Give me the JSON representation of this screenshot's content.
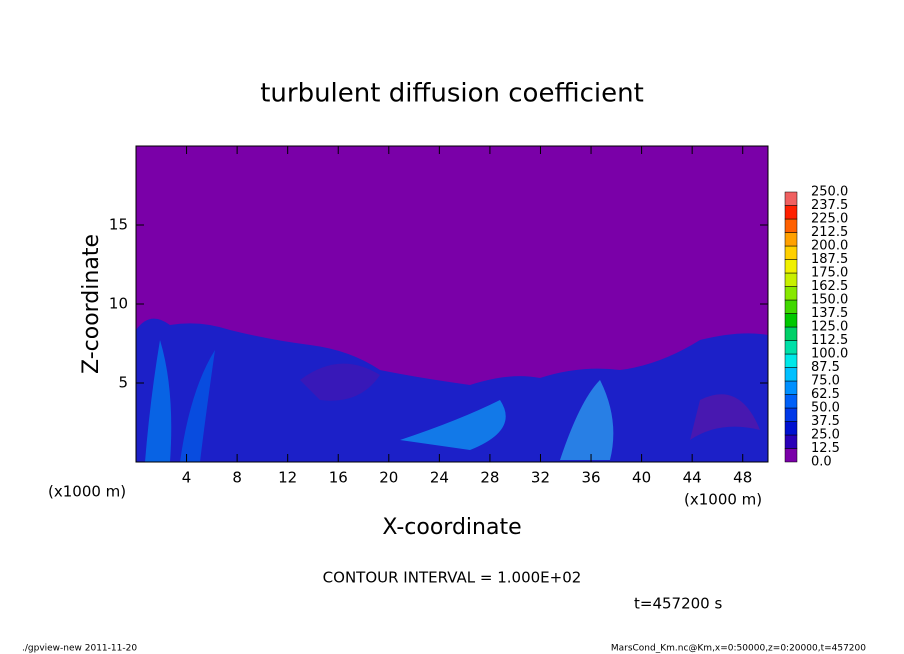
{
  "chart_data": {
    "type": "contour",
    "title": "turbulent diffusion coefficient",
    "xlabel": "X-coordinate",
    "ylabel": "Z-coordinate",
    "xunit": "(x1000 m)",
    "xlim": [
      0,
      50
    ],
    "xticks": [
      4,
      8,
      12,
      16,
      20,
      24,
      28,
      32,
      36,
      40,
      44,
      48
    ],
    "ylim": [
      0,
      20
    ],
    "yticks": [
      5,
      10,
      15
    ],
    "background_color": "#7a00a8",
    "colorbar": {
      "levels": [
        {
          "value": 0,
          "label": "0.0"
        },
        12.5,
        {
          "value": 25,
          "label": "25.0"
        },
        37.5,
        {
          "value": 50,
          "label": "50.0"
        },
        62.5,
        {
          "value": 75,
          "label": "75.0"
        },
        87.5,
        {
          "value": 100,
          "label": "100.0"
        },
        112.5,
        {
          "value": 125,
          "label": "125.0"
        },
        137.5,
        {
          "value": 150,
          "label": "150.0"
        },
        162.5,
        {
          "value": 175,
          "label": "175.0"
        },
        187.5,
        {
          "value": 200,
          "label": "200.0"
        },
        212.5,
        {
          "value": 225,
          "label": "225.0"
        },
        237.5,
        {
          "value": 250,
          "label": "250.0"
        }
      ],
      "colors": [
        "#7a00a8",
        "#2a00b8",
        "#0010d0",
        "#0038e8",
        "#0060f8",
        "#0090ff",
        "#00c0ff",
        "#00e8e8",
        "#00e0a8",
        "#00d068",
        "#00c800",
        "#40d800",
        "#88e800",
        "#c8f000",
        "#f0f000",
        "#ffd000",
        "#ffa000",
        "#ff6000",
        "#ff2000",
        "#f06060"
      ]
    },
    "annotations": {
      "contour_interval": "CONTOUR INTERVAL = 1.000E+02",
      "time": "t=457200 s",
      "footer_left": "./gpview-new  2011-11-20",
      "footer_right": "MarsCond_Km.nc@Km,x=0:50000,z=0:20000,t=457200"
    }
  }
}
